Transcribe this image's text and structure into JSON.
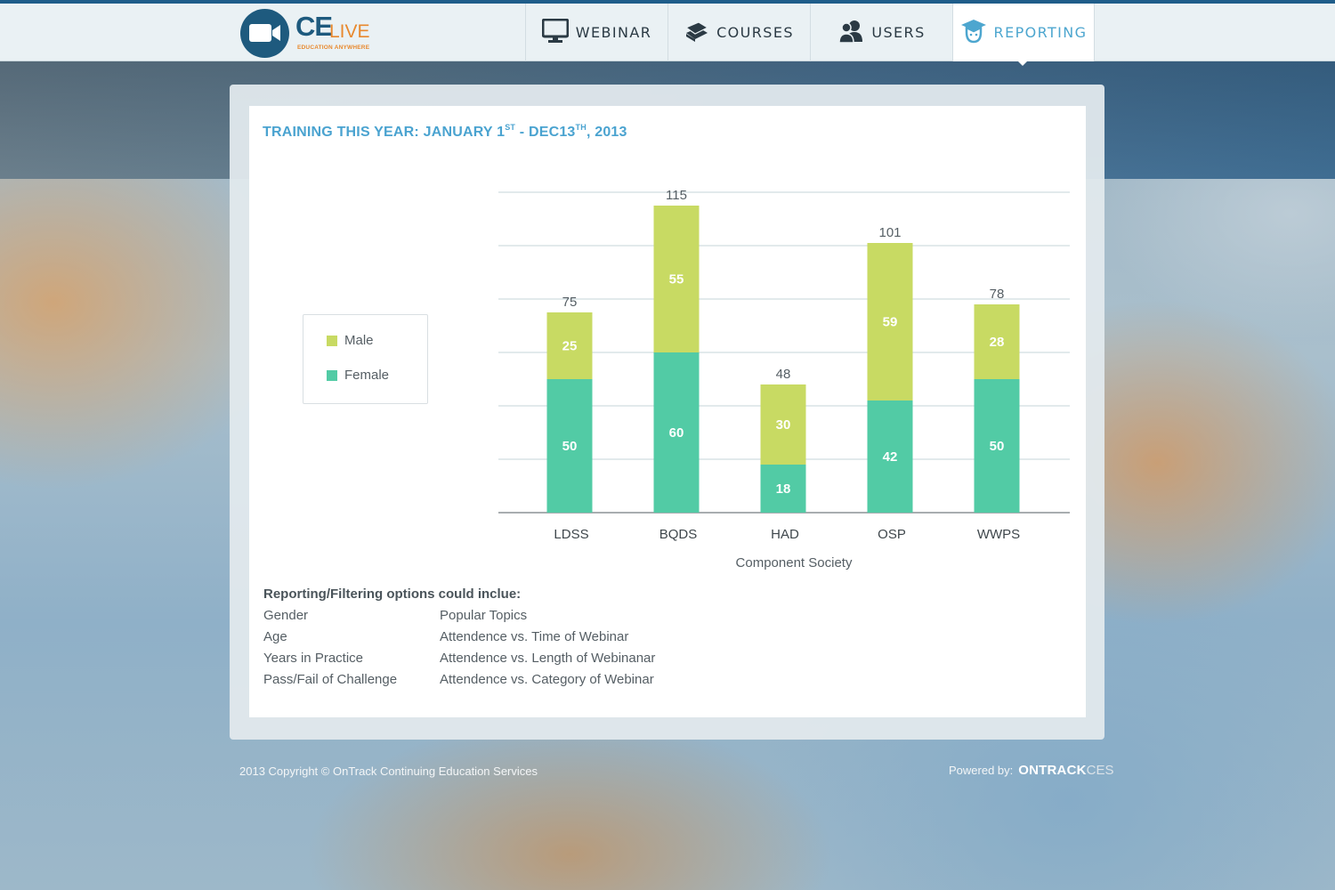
{
  "app": {
    "logo_main": "CE",
    "logo_accent": "LIVE",
    "logo_tagline": "EDUCATION ANYWHERE"
  },
  "nav": {
    "items": [
      {
        "label": "WEBINAR",
        "icon": "monitor-icon"
      },
      {
        "label": "COURSES",
        "icon": "books-icon"
      },
      {
        "label": "USERS",
        "icon": "users-icon"
      },
      {
        "label": "REPORTING",
        "icon": "graduate-icon",
        "active": true
      }
    ]
  },
  "report": {
    "title_part1": "TRAINING THIS YEAR: JANUARY 1",
    "title_sup1": "ST",
    "title_part2": " - DEC13",
    "title_sup2": "TH",
    "title_part3": ", 2013"
  },
  "chart_data": {
    "type": "bar",
    "stacked": true,
    "categories": [
      "LDSS",
      "BQDS",
      "HAD",
      "OSP",
      "WWPS"
    ],
    "series": [
      {
        "name": "Female",
        "values": [
          50,
          60,
          18,
          42,
          50
        ],
        "color": "#52cba5"
      },
      {
        "name": "Male",
        "values": [
          25,
          55,
          30,
          59,
          28
        ],
        "color": "#c8da63"
      }
    ],
    "totals": [
      75,
      115,
      48,
      101,
      78
    ],
    "title": "",
    "xlabel": "Component Society",
    "ylabel": "",
    "ylim": [
      0,
      120
    ],
    "grid": true,
    "legend_position": "left",
    "legend_entries": [
      "Male",
      "Female"
    ]
  },
  "options": {
    "heading": "Reporting/Filtering options could inclue:",
    "left": [
      "Gender",
      "Age",
      "Years in Practice",
      "Pass/Fail of Challenge"
    ],
    "right": [
      "Popular Topics",
      "Attendence vs. Time of Webinar",
      "Attendence vs. Length of Webinanar",
      "Attendence vs. Category of Webinar"
    ]
  },
  "footer": {
    "copyright": "2013 Copyright © OnTrack Continuing Education Services",
    "powered_label": "Powered by:",
    "brand_main": "ONTRACK",
    "brand_accent": "CES"
  },
  "colors": {
    "accent": "#4aa3d0",
    "header_border": "#1f5d8a",
    "male": "#c8da63",
    "female": "#52cba5"
  }
}
